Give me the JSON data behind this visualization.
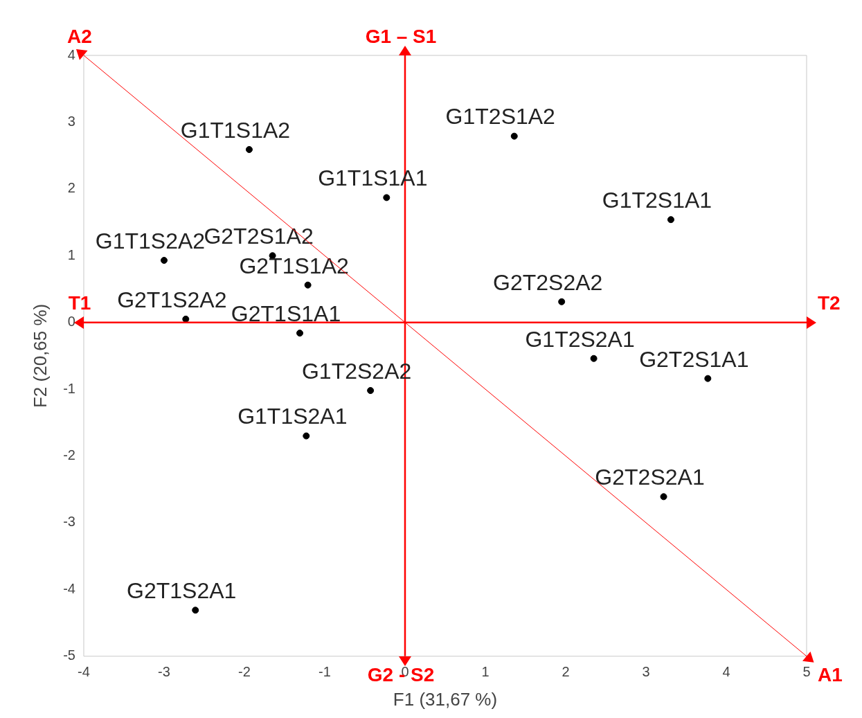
{
  "chart_data": {
    "type": "scatter",
    "xlabel": "F1 (31,67 %)",
    "ylabel": "F2 (20,65 %)",
    "xlim": [
      -4,
      5
    ],
    "xticks": [
      -4,
      -3,
      -2,
      -1,
      0,
      1,
      2,
      3,
      4,
      5
    ],
    "ylim": [
      -5,
      4
    ],
    "yticks": [
      -5,
      -4,
      -3,
      -2,
      -1,
      0,
      1,
      2,
      3,
      4
    ],
    "grid": false,
    "legend": false,
    "marker": "circle",
    "ref_lines": [
      {
        "axis": "y",
        "value": 0,
        "color": "#ff0000"
      },
      {
        "axis": "x",
        "value": 0,
        "color": "#ff0000"
      }
    ],
    "series": [
      {
        "color": "#000000",
        "x": [
          -1.94,
          1.36,
          -0.23,
          3.31,
          -3.0,
          -1.65,
          -1.21,
          1.95,
          -2.73,
          -1.31,
          2.35,
          3.77,
          -0.43,
          -1.23,
          3.22,
          -2.61
        ],
        "values": [
          2.59,
          2.79,
          1.87,
          1.54,
          0.93,
          1.0,
          0.56,
          0.31,
          0.05,
          -0.16,
          -0.54,
          -0.84,
          -1.02,
          -1.7,
          -2.61,
          -4.31
        ]
      }
    ],
    "annotations": [
      {
        "text": "G1T1S1A2",
        "x": -1.94,
        "y": 2.59
      },
      {
        "text": "G1T2S1A2",
        "x": 1.36,
        "y": 2.79
      },
      {
        "text": "G1T1S1A1",
        "x": -0.23,
        "y": 1.87
      },
      {
        "text": "G1T2S1A1",
        "x": 3.31,
        "y": 1.54
      },
      {
        "text": "G1T1S2A2",
        "x": -3.0,
        "y": 0.93
      },
      {
        "text": "G2T2S1A2",
        "x": -1.65,
        "y": 1.0
      },
      {
        "text": "G2T1S1A2",
        "x": -1.21,
        "y": 0.56
      },
      {
        "text": "G2T2S2A2",
        "x": 1.95,
        "y": 0.31
      },
      {
        "text": "G2T1S2A2",
        "x": -2.73,
        "y": 0.05
      },
      {
        "text": "G2T1S1A1",
        "x": -1.31,
        "y": -0.16
      },
      {
        "text": "G1T2S2A1",
        "x": 2.35,
        "y": -0.54
      },
      {
        "text": "G2T2S1A1",
        "x": 3.77,
        "y": -0.84
      },
      {
        "text": "G1T2S2A2",
        "x": -0.43,
        "y": -1.02
      },
      {
        "text": "G1T1S2A1",
        "x": -1.23,
        "y": -1.7
      },
      {
        "text": "G2T2S2A1",
        "x": 3.22,
        "y": -2.61
      },
      {
        "text": "G2T1S2A1",
        "x": -2.61,
        "y": -4.31
      },
      "T1",
      "T2",
      "G1 – S1",
      "G2 - S2",
      "A2",
      "A1"
    ]
  }
}
